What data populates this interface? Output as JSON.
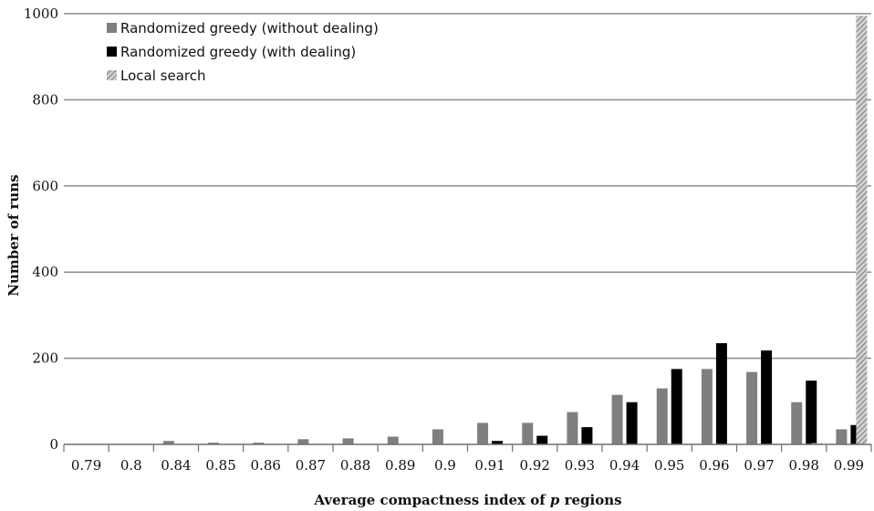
{
  "chart_data": {
    "type": "bar",
    "title": "",
    "xlabel": "Average compactness index of ",
    "xlabel_italic": "p",
    "xlabel_suffix": " regions",
    "ylabel": "Number of runs",
    "ylim": [
      0,
      1000
    ],
    "yticks": [
      "0",
      "200",
      "400",
      "600",
      "800",
      "1000"
    ],
    "grid": "horizontal",
    "legend_position": "top-left",
    "categories": [
      "0.79",
      "0.8",
      "0.84",
      "0.85",
      "0.86",
      "0.87",
      "0.88",
      "0.89",
      "0.9",
      "0.91",
      "0.92",
      "0.93",
      "0.94",
      "0.95",
      "0.96",
      "0.97",
      "0.98",
      "0.99"
    ],
    "series": [
      {
        "name": "Randomized greedy (without dealing)",
        "color": "#7f7f7f",
        "pattern": "solid",
        "values": [
          0,
          0,
          8,
          4,
          4,
          12,
          14,
          18,
          35,
          50,
          50,
          75,
          115,
          130,
          175,
          168,
          98,
          35
        ]
      },
      {
        "name": "Randomized greedy (with dealing)",
        "color": "#000000",
        "pattern": "solid",
        "values": [
          0,
          0,
          0,
          0,
          0,
          0,
          0,
          0,
          0,
          8,
          20,
          40,
          98,
          175,
          235,
          218,
          148,
          45
        ]
      },
      {
        "name": "Local search",
        "color": "#b3b3b3",
        "pattern": "hatched",
        "values": [
          0,
          0,
          0,
          0,
          0,
          0,
          0,
          0,
          0,
          0,
          0,
          0,
          0,
          0,
          0,
          0,
          3,
          995
        ]
      }
    ]
  }
}
